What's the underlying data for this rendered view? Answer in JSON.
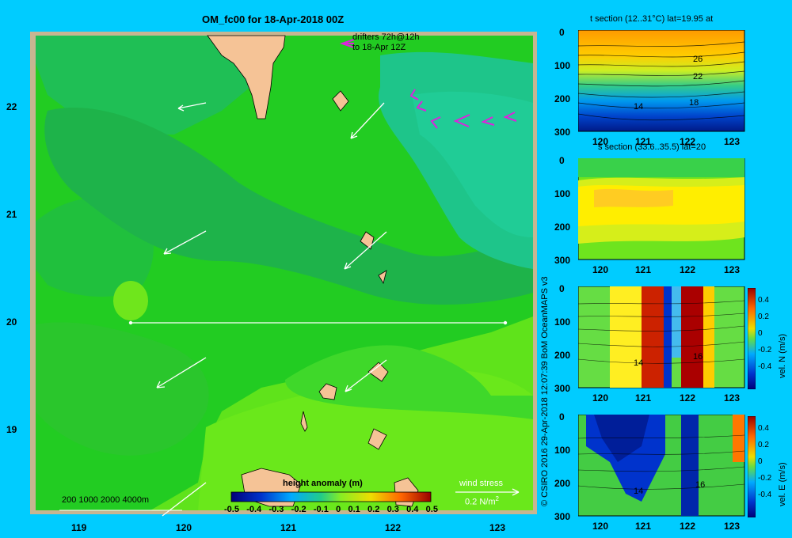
{
  "map": {
    "title": "OM_fc00 for 18-Apr-2018 00Z",
    "drifters_line1": "drifters 72h@12h",
    "drifters_line2": "to 18-Apr 12Z",
    "lon_ticks": [
      "119",
      "120",
      "121",
      "122",
      "123"
    ],
    "lat_ticks": [
      "22",
      "21",
      "20",
      "19"
    ],
    "scale_bar": "200  1000  2000  4000m",
    "colorbar_title": "height anomaly  (m)",
    "colorbar_ticks": [
      "-0.5",
      "-0.4",
      "-0.3",
      "-0.2",
      "-0.1",
      "0",
      "0.1",
      "0.2",
      "0.3",
      "0.4",
      "0.5"
    ],
    "wind_stress_label": "wind stress",
    "wind_stress_value": "0.2 N/m",
    "wind_stress_sup": "2",
    "credit": "© CSIRO 2016   29-Apr-2018 12:07:39 BoM OceanMAPS v3"
  },
  "panels": [
    {
      "title": "t section (12..31°C) lat=19.95 at",
      "x_ticks": [
        "120",
        "121",
        "122",
        "123"
      ],
      "y_ticks": [
        "0",
        "100",
        "200",
        "300"
      ],
      "contour_labels": [
        "26",
        "22",
        "18",
        "14"
      ]
    },
    {
      "title": "s section (33.6..35.5) lat=20",
      "x_ticks": [
        "120",
        "121",
        "122",
        "123"
      ],
      "y_ticks": [
        "0",
        "100",
        "200",
        "300"
      ]
    },
    {
      "title": "",
      "x_ticks": [
        "120",
        "121",
        "122",
        "123"
      ],
      "y_ticks": [
        "0",
        "100",
        "200",
        "300"
      ],
      "cbar_ticks": [
        "0.4",
        "0.2",
        "0",
        "-0.2",
        "-0.4"
      ],
      "cbar_label": "vel. N (m/s)",
      "contour_labels": [
        "14",
        "16"
      ]
    },
    {
      "title": "",
      "x_ticks": [
        "120",
        "121",
        "122",
        "123"
      ],
      "y_ticks": [
        "0",
        "100",
        "200",
        "300"
      ],
      "cbar_ticks": [
        "0.4",
        "0.2",
        "0",
        "-0.2",
        "-0.4"
      ],
      "cbar_label": "vel. E (m/s)",
      "contour_labels": [
        "14",
        "16"
      ]
    }
  ],
  "colors": {
    "background": "#00ccff",
    "land": "#f5c396",
    "sea_green": "#22bb44",
    "drifter": "#dd22dd"
  }
}
